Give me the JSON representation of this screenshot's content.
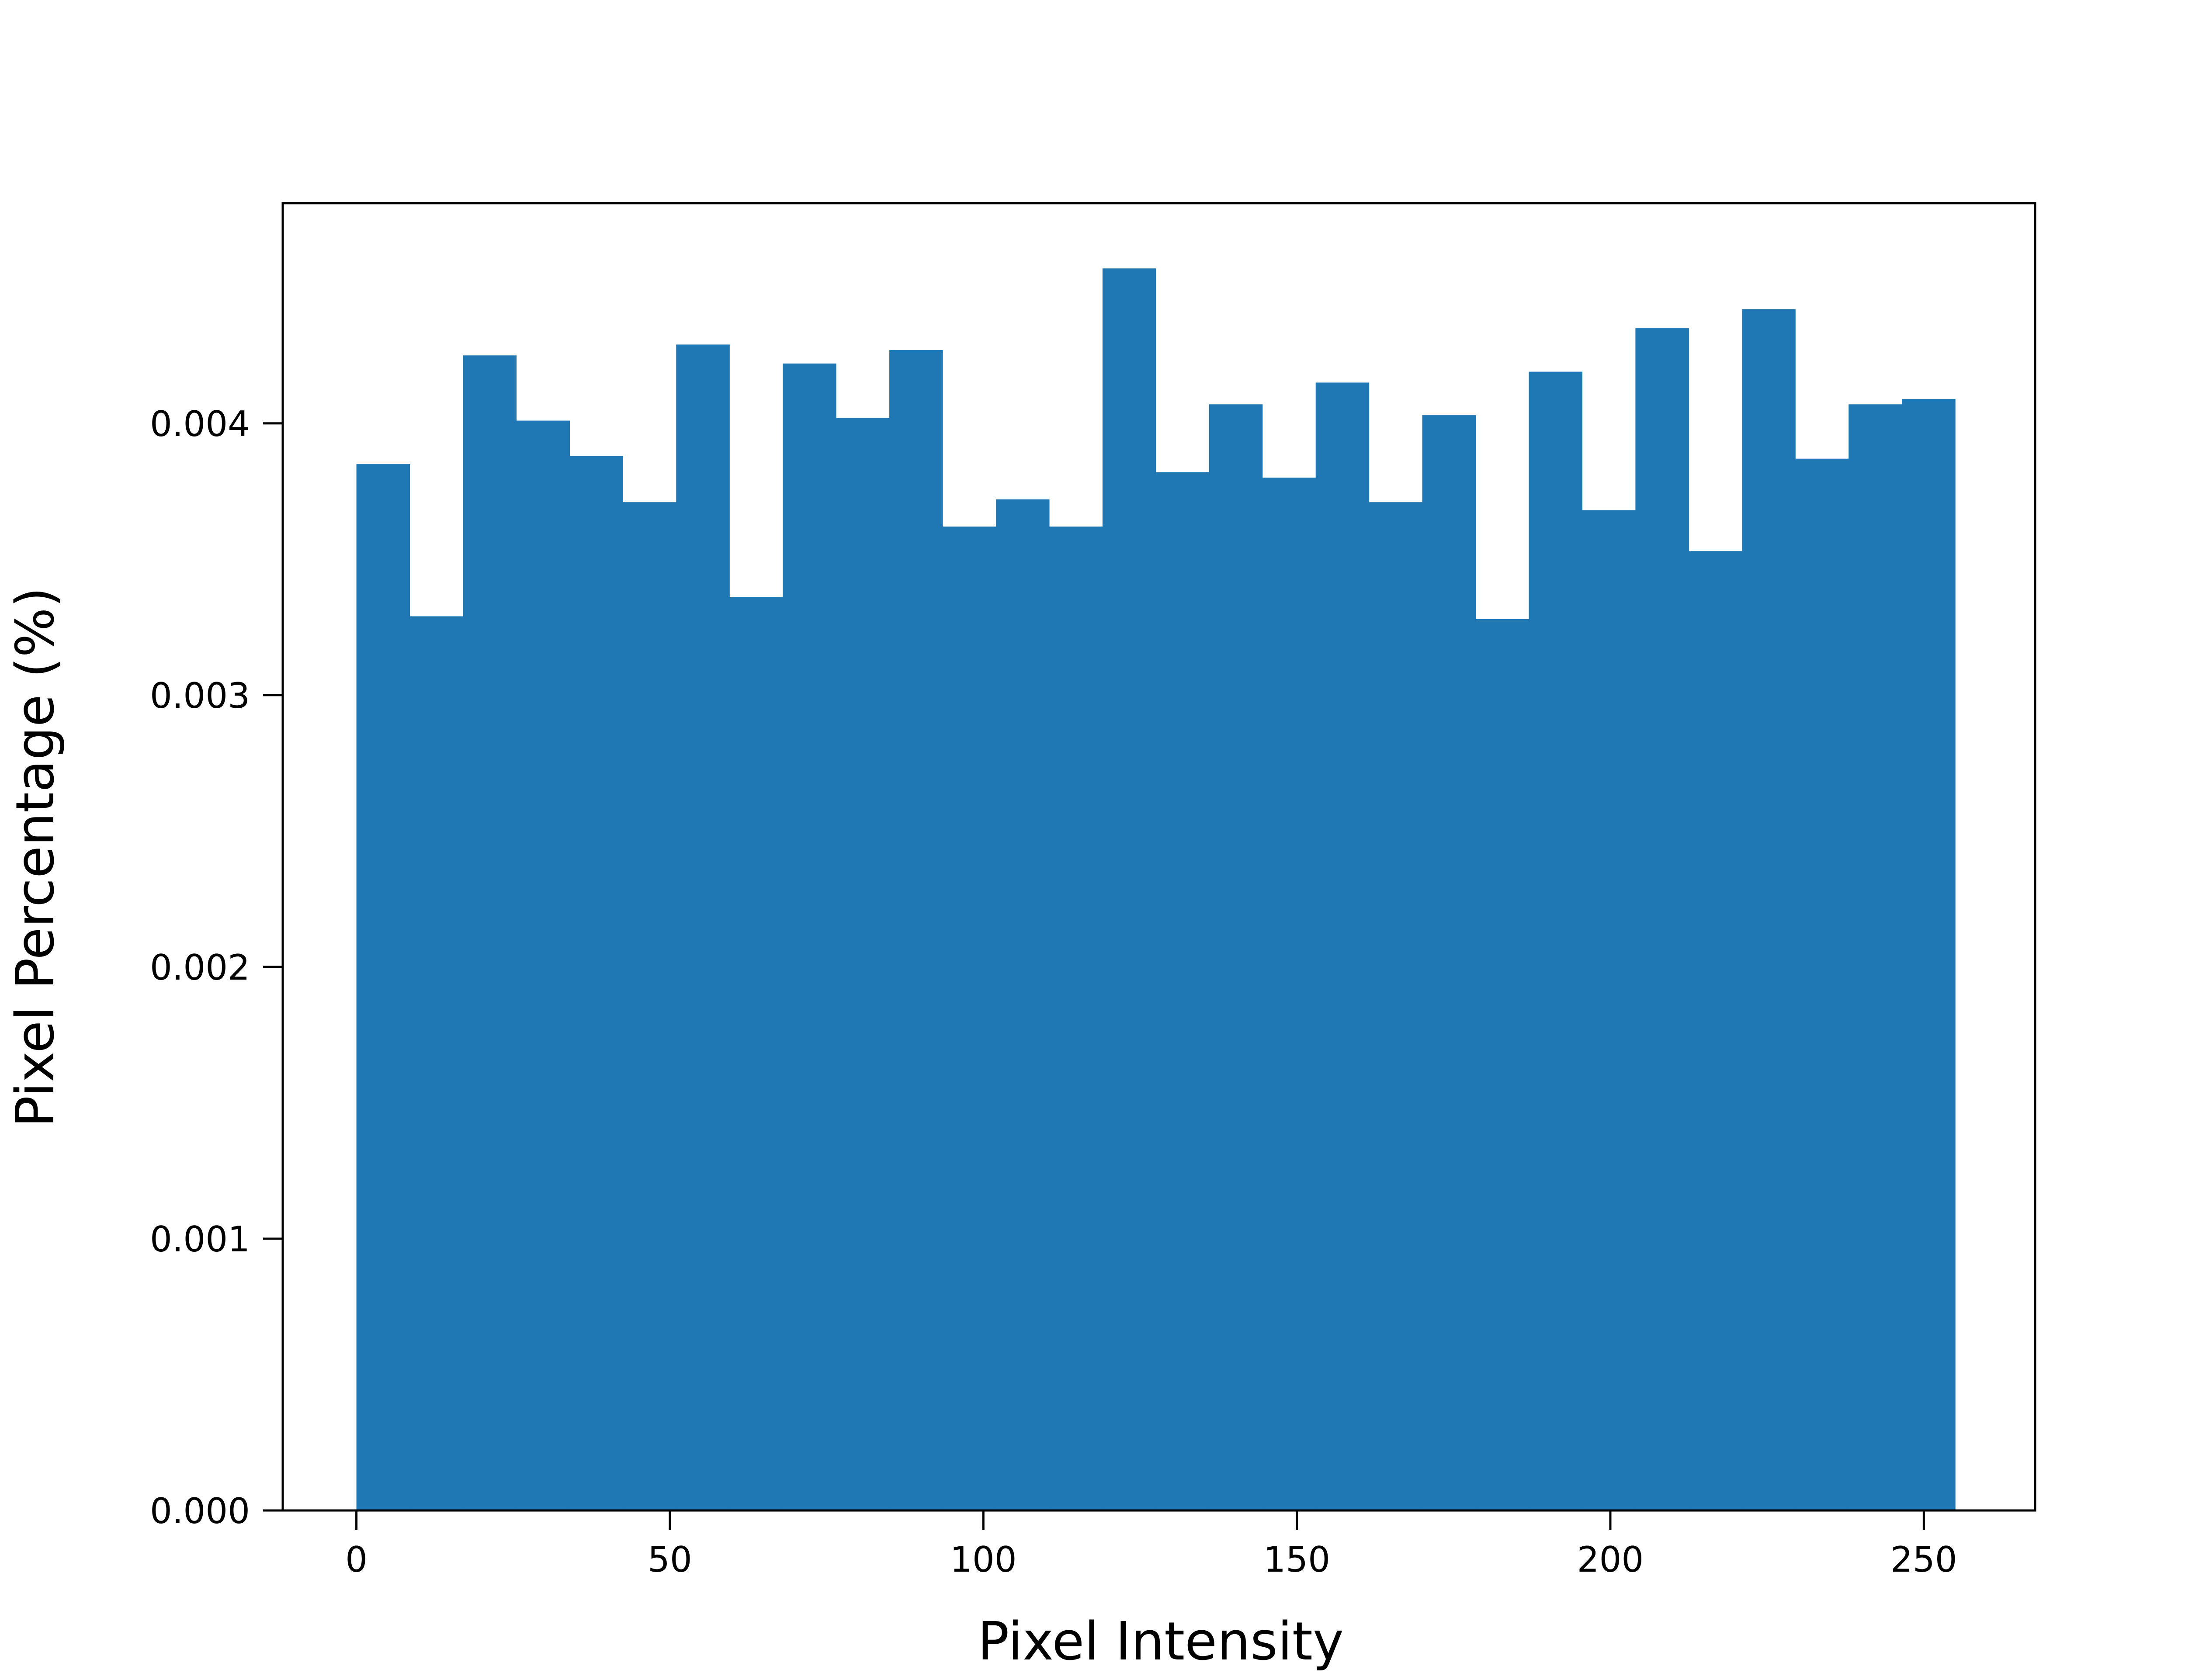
{
  "chart_data": {
    "type": "bar",
    "title": "",
    "xlabel": "Pixel Intensity",
    "ylabel": "Pixel Percentage (%)",
    "xlim": [
      -11.75,
      267.75
    ],
    "ylim": [
      0,
      0.00481
    ],
    "grid": false,
    "legend": "none",
    "bar_color": "#1f77b4",
    "x_ticks": [
      "0",
      "50",
      "100",
      "150",
      "200",
      "250"
    ],
    "x_tick_values": [
      0,
      50,
      100,
      150,
      200,
      250
    ],
    "y_ticks": [
      "0.000",
      "0.001",
      "0.002",
      "0.003",
      "0.004"
    ],
    "y_tick_values": [
      0,
      0.001,
      0.002,
      0.003,
      0.004
    ],
    "bin_edges": [
      0,
      8.5,
      17,
      25.5,
      34,
      42.5,
      51,
      59.5,
      68,
      76.5,
      85,
      93.5,
      102,
      110.5,
      119,
      127.5,
      136,
      144.5,
      153,
      161.5,
      170,
      178.5,
      187,
      195.5,
      204,
      212.5,
      221,
      229.5,
      238,
      246.5,
      255
    ],
    "values": [
      0.00385,
      0.00329,
      0.00425,
      0.00401,
      0.00388,
      0.00371,
      0.00429,
      0.00336,
      0.00422,
      0.00402,
      0.00427,
      0.00362,
      0.00372,
      0.00362,
      0.00457,
      0.00382,
      0.00407,
      0.0038,
      0.00415,
      0.00371,
      0.00403,
      0.00328,
      0.00419,
      0.00368,
      0.00435,
      0.00353,
      0.00442,
      0.00387,
      0.00407,
      0.00409
    ]
  }
}
